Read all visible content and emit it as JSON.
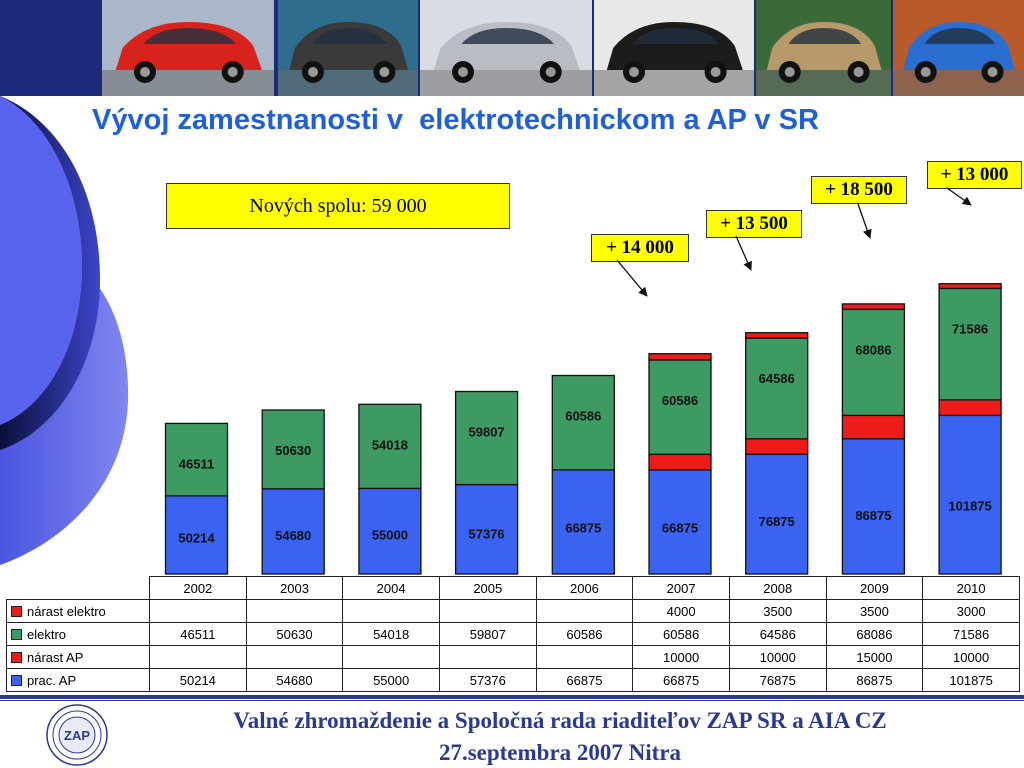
{
  "title": "Vývoj zamestnanosti v  elektrotechnickom a AP v SR",
  "summary": "Nových spolu: 59 000",
  "callouts": [
    "+ 14 000",
    "+ 13 500",
    "+ 18 500",
    "+ 13 000"
  ],
  "colors": {
    "prac_ap": "#3a63f2",
    "narast_ap": "#ee1b1b",
    "elektro": "#3c9a62",
    "narast_elektro": "#ee1b1b",
    "title": "#1f5fd8",
    "summary_bg": "#ffff00",
    "footer": "#2b3a8f"
  },
  "chart_data": {
    "type": "bar",
    "stacked": true,
    "categories": [
      "2002",
      "2003",
      "2004",
      "2005",
      "2006",
      "2007",
      "2008",
      "2009",
      "2010"
    ],
    "series": [
      {
        "name": "prac. AP",
        "values": [
          50214,
          54680,
          55000,
          57376,
          66875,
          66875,
          76875,
          86875,
          101875
        ]
      },
      {
        "name": "nárast AP",
        "values": [
          null,
          null,
          null,
          null,
          null,
          10000,
          10000,
          15000,
          10000
        ]
      },
      {
        "name": "elektro",
        "values": [
          46511,
          50630,
          54018,
          59807,
          60586,
          60586,
          64586,
          68086,
          71586
        ]
      },
      {
        "name": "nárast elektro",
        "values": [
          null,
          null,
          null,
          null,
          null,
          4000,
          3500,
          3500,
          3000
        ]
      }
    ],
    "legend_position": "left of data table",
    "grid": false
  },
  "table_rows": [
    {
      "label": "nárast elektro",
      "series": 3,
      "color": "#ee1b1b"
    },
    {
      "label": "elektro",
      "series": 2,
      "color": "#3c9a62"
    },
    {
      "label": "nárast AP",
      "series": 1,
      "color": "#ee1b1b"
    },
    {
      "label": "prac. AP",
      "series": 0,
      "color": "#3a63f2"
    }
  ],
  "footer": {
    "line1": "Valné zhromaždenie a Spoločná rada riaditeľov ZAP SR a AIA CZ",
    "line2": "27.septembra 2007 Nitra",
    "logo_text": "ZAP"
  },
  "photos": [
    {
      "name": "red-hatchback",
      "body": "#d8231c",
      "bg": "#a9b7c8"
    },
    {
      "name": "dark-suv-splash",
      "body": "#3a3a3a",
      "bg": "#2f6d8e"
    },
    {
      "name": "silver-suv",
      "body": "#b9bcc2",
      "bg": "#d9dce2"
    },
    {
      "name": "black-suv",
      "body": "#1c1c1c",
      "bg": "#e8e8e8"
    },
    {
      "name": "gold-hatchback",
      "body": "#b89a6a",
      "bg": "#3b6a3a"
    },
    {
      "name": "blue-hatchback",
      "body": "#2a6fd0",
      "bg": "#b85a2a"
    }
  ]
}
